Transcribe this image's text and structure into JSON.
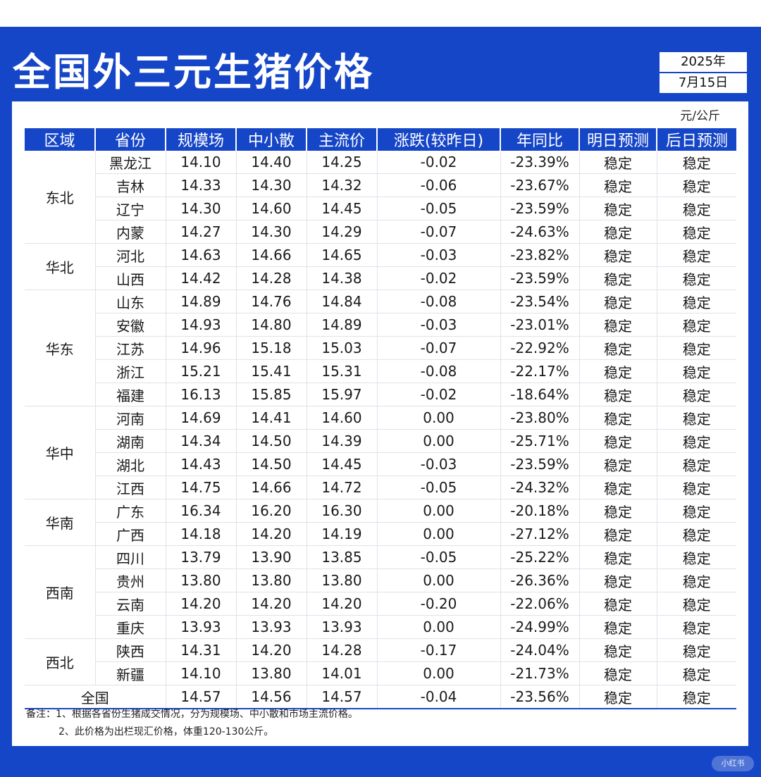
{
  "title": "全国外三元生猪价格",
  "date": {
    "year": "2025年",
    "day": "7月15日"
  },
  "unit": "元/公斤",
  "columns": [
    "区域",
    "省份",
    "规模场",
    "中小散",
    "主流价",
    "涨跌(较昨日)",
    "年同比",
    "明日预测",
    "后日预测"
  ],
  "colors": {
    "accent": "#1646c8",
    "down": "#19b24a"
  },
  "regions": [
    {
      "name": "东北",
      "rows": [
        {
          "province": "黑龙江",
          "large": "14.10",
          "small": "14.40",
          "mainstream": "14.25",
          "change": "-0.02",
          "yoy": "-23.39%",
          "tomorrow": "稳定",
          "dayafter": "稳定"
        },
        {
          "province": "吉林",
          "large": "14.33",
          "small": "14.30",
          "mainstream": "14.32",
          "change": "-0.06",
          "yoy": "-23.67%",
          "tomorrow": "稳定",
          "dayafter": "稳定"
        },
        {
          "province": "辽宁",
          "large": "14.30",
          "small": "14.60",
          "mainstream": "14.45",
          "change": "-0.05",
          "yoy": "-23.59%",
          "tomorrow": "稳定",
          "dayafter": "稳定"
        },
        {
          "province": "内蒙",
          "large": "14.27",
          "small": "14.30",
          "mainstream": "14.29",
          "change": "-0.07",
          "yoy": "-24.63%",
          "tomorrow": "稳定",
          "dayafter": "稳定"
        }
      ]
    },
    {
      "name": "华北",
      "rows": [
        {
          "province": "河北",
          "large": "14.63",
          "small": "14.66",
          "mainstream": "14.65",
          "change": "-0.03",
          "yoy": "-23.82%",
          "tomorrow": "稳定",
          "dayafter": "稳定"
        },
        {
          "province": "山西",
          "large": "14.42",
          "small": "14.28",
          "mainstream": "14.38",
          "change": "-0.02",
          "yoy": "-23.59%",
          "tomorrow": "稳定",
          "dayafter": "稳定"
        }
      ]
    },
    {
      "name": "华东",
      "rows": [
        {
          "province": "山东",
          "large": "14.89",
          "small": "14.76",
          "mainstream": "14.84",
          "change": "-0.08",
          "yoy": "-23.54%",
          "tomorrow": "稳定",
          "dayafter": "稳定"
        },
        {
          "province": "安徽",
          "large": "14.93",
          "small": "14.80",
          "mainstream": "14.89",
          "change": "-0.03",
          "yoy": "-23.01%",
          "tomorrow": "稳定",
          "dayafter": "稳定"
        },
        {
          "province": "江苏",
          "large": "14.96",
          "small": "15.18",
          "mainstream": "15.03",
          "change": "-0.07",
          "yoy": "-22.92%",
          "tomorrow": "稳定",
          "dayafter": "稳定"
        },
        {
          "province": "浙江",
          "large": "15.21",
          "small": "15.41",
          "mainstream": "15.31",
          "change": "-0.08",
          "yoy": "-22.17%",
          "tomorrow": "稳定",
          "dayafter": "稳定"
        },
        {
          "province": "福建",
          "large": "16.13",
          "small": "15.85",
          "mainstream": "15.97",
          "change": "-0.02",
          "yoy": "-18.64%",
          "tomorrow": "稳定",
          "dayafter": "稳定"
        }
      ]
    },
    {
      "name": "华中",
      "rows": [
        {
          "province": "河南",
          "large": "14.69",
          "small": "14.41",
          "mainstream": "14.60",
          "change": "0.00",
          "yoy": "-23.80%",
          "tomorrow": "稳定",
          "dayafter": "稳定"
        },
        {
          "province": "湖南",
          "large": "14.34",
          "small": "14.50",
          "mainstream": "14.39",
          "change": "0.00",
          "yoy": "-25.71%",
          "tomorrow": "稳定",
          "dayafter": "稳定"
        },
        {
          "province": "湖北",
          "large": "14.43",
          "small": "14.50",
          "mainstream": "14.45",
          "change": "-0.03",
          "yoy": "-23.59%",
          "tomorrow": "稳定",
          "dayafter": "稳定"
        },
        {
          "province": "江西",
          "large": "14.75",
          "small": "14.66",
          "mainstream": "14.72",
          "change": "-0.05",
          "yoy": "-24.32%",
          "tomorrow": "稳定",
          "dayafter": "稳定"
        }
      ]
    },
    {
      "name": "华南",
      "rows": [
        {
          "province": "广东",
          "large": "16.34",
          "small": "16.20",
          "mainstream": "16.30",
          "change": "0.00",
          "yoy": "-20.18%",
          "tomorrow": "稳定",
          "dayafter": "稳定"
        },
        {
          "province": "广西",
          "large": "14.18",
          "small": "14.20",
          "mainstream": "14.19",
          "change": "0.00",
          "yoy": "-27.12%",
          "tomorrow": "稳定",
          "dayafter": "稳定"
        }
      ]
    },
    {
      "name": "西南",
      "rows": [
        {
          "province": "四川",
          "large": "13.79",
          "small": "13.90",
          "mainstream": "13.85",
          "change": "-0.05",
          "yoy": "-25.22%",
          "tomorrow": "稳定",
          "dayafter": "稳定"
        },
        {
          "province": "贵州",
          "large": "13.80",
          "small": "13.80",
          "mainstream": "13.80",
          "change": "0.00",
          "yoy": "-26.36%",
          "tomorrow": "稳定",
          "dayafter": "稳定"
        },
        {
          "province": "云南",
          "large": "14.20",
          "small": "14.20",
          "mainstream": "14.20",
          "change": "-0.20",
          "yoy": "-22.06%",
          "tomorrow": "稳定",
          "dayafter": "稳定"
        },
        {
          "province": "重庆",
          "large": "13.93",
          "small": "13.93",
          "mainstream": "13.93",
          "change": "0.00",
          "yoy": "-24.99%",
          "tomorrow": "稳定",
          "dayafter": "稳定"
        }
      ]
    },
    {
      "name": "西北",
      "rows": [
        {
          "province": "陕西",
          "large": "14.31",
          "small": "14.20",
          "mainstream": "14.28",
          "change": "-0.17",
          "yoy": "-24.04%",
          "tomorrow": "稳定",
          "dayafter": "稳定"
        },
        {
          "province": "新疆",
          "large": "14.10",
          "small": "13.80",
          "mainstream": "14.01",
          "change": "0.00",
          "yoy": "-21.73%",
          "tomorrow": "稳定",
          "dayafter": "稳定"
        }
      ]
    }
  ],
  "national": {
    "label": "全国",
    "large": "14.57",
    "small": "14.56",
    "mainstream": "14.57",
    "change": "-0.04",
    "yoy": "-23.56%",
    "tomorrow": "稳定",
    "dayafter": "稳定"
  },
  "notes": [
    "备注：1、根据各省份生猪成交情况，分为规模场、中小散和市场主流价格。",
    "2、此价格为出栏现汇价格，体重120-130公斤。"
  ],
  "watermark": "小红书"
}
